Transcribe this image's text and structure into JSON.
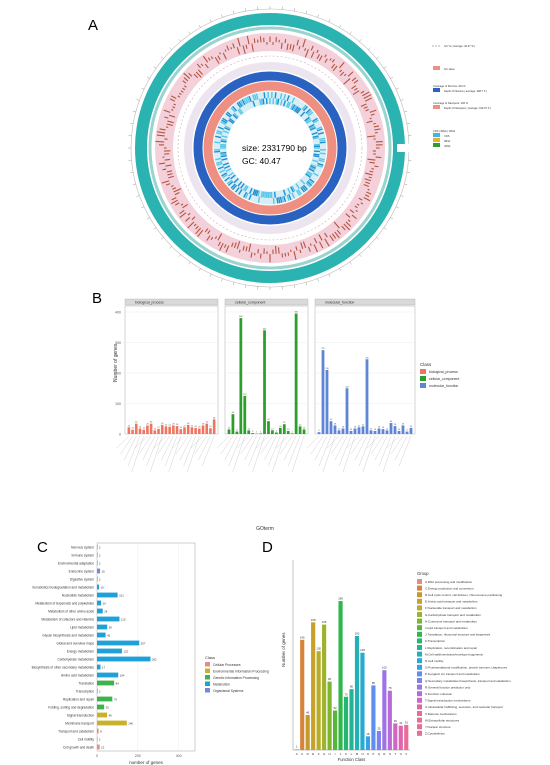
{
  "panel_labels": {
    "a": "A",
    "b": "B",
    "c": "C",
    "d": "D"
  },
  "colors": {
    "teal": "#2bb3b1",
    "pink": "#f0a3b8",
    "blue": "#2a62c2",
    "salmon": "#ee8f82",
    "cyan": "#3fb6e3",
    "bp_red": "#f07560",
    "cc_green": "#2aa02a",
    "mf_blue": "#5e86d4",
    "kegg_cp": "#e58b8b",
    "kegg_eip": "#c9b22a",
    "kegg_gip": "#3cb44b",
    "kegg_met": "#1ea0d8",
    "kegg_os": "#7a87d6",
    "strip": "#d9d9d9"
  },
  "chart_data": [
    {
      "type": "circos",
      "center_text": {
        "size": "size: 2331790 bp",
        "gc": "GC: 40.47"
      },
      "legend": [
        {
          "label": "GC % ( Average: 40.47 % )",
          "color": "#aaaaaa"
        },
        {
          "label": "GC skew",
          "color": "#ee8f82"
        },
        {
          "label": "Coverage of Illumina: 100 %",
          "color": ""
        },
        {
          "label": "Depth of Illumina ( average: 498.7 X )",
          "color": "#2a62c2"
        },
        {
          "label": "Coverage of Nanopore: 100 %",
          "color": ""
        },
        {
          "label": "Depth of Nanopore ( average: 432.57 X )",
          "color": "#ee8f82"
        },
        {
          "label": "CDS | tRNA | rRNA",
          "color": ""
        },
        {
          "label": "CDS",
          "color": "#3fb6e3"
        },
        {
          "label": "tRNA",
          "color": "#e6b422"
        },
        {
          "label": "rRNA",
          "color": "#2aa02a"
        }
      ]
    },
    {
      "type": "bar",
      "ylabel": "Number of genes",
      "xlabel": "GOterm",
      "ylim": [
        0,
        400
      ],
      "yticks": [
        0,
        100,
        200,
        300,
        400
      ],
      "legend": {
        "title": "Class",
        "position": "right",
        "entries": [
          "biological_process",
          "cellular_component",
          "molecular_function"
        ]
      },
      "facets": [
        {
          "name": "biological_process",
          "color": "#f07560",
          "values": [
            22,
            14,
            34,
            18,
            14,
            28,
            34,
            12,
            17,
            30,
            25,
            24,
            28,
            26,
            16,
            22,
            30,
            22,
            20,
            18,
            28,
            34,
            19,
            48
          ]
        },
        {
          "name": "cellular_component",
          "color": "#2aa02a",
          "values": [
            15,
            65,
            8,
            380,
            125,
            12,
            3,
            1,
            2,
            340,
            42,
            12,
            5,
            20,
            32,
            10,
            2,
            395,
            25,
            15
          ]
        },
        {
          "name": "molecular_function",
          "color": "#5e86d4",
          "values": [
            6,
            275,
            210,
            42,
            28,
            12,
            18,
            150,
            10,
            18,
            22,
            25,
            245,
            12,
            10,
            18,
            16,
            12,
            36,
            26,
            10,
            28,
            8,
            20
          ]
        }
      ]
    },
    {
      "type": "bar",
      "orientation": "horizontal",
      "xlabel": "number of genes",
      "xlim": [
        0,
        480
      ],
      "xticks": [
        0,
        200,
        400
      ],
      "legend": {
        "title": "Class",
        "position": "right",
        "entries": [
          "Cellular Processes",
          "Environmental Information Processing",
          "Genetic Information Processing",
          "Metabolism",
          "Organismal Systems"
        ]
      },
      "categories": [
        "Nervous system",
        "Immune system",
        "Environmental adaptation",
        "Endocrine system",
        "Digestive system",
        "Xenobiotics biodegradation and metabolism",
        "Nucleotide metabolism",
        "Metabolism of terpenoids and polyketides",
        "Metabolism of other amino acids",
        "Metabolism of cofactors and vitamins",
        "Lipid metabolism",
        "Glycan biosynthesis and metabolism",
        "Global and overview maps",
        "Energy metabolism",
        "Carbohydrate metabolism",
        "Biosynthesis of other secondary metabolites",
        "Amino acid metabolism",
        "Translation",
        "Transcription",
        "Replication and repair",
        "Folding, sorting and degradation",
        "Signal transduction",
        "Membrane transport",
        "Transport and catabolism",
        "Cell motility",
        "Cell growth and death"
      ],
      "values": [
        2,
        2,
        2,
        15,
        2,
        10,
        101,
        20,
        28,
        110,
        50,
        42,
        207,
        122,
        262,
        17,
        104,
        84,
        2,
        75,
        35,
        49,
        146,
        8,
        2,
        13
      ],
      "classes": [
        "Organismal Systems",
        "Organismal Systems",
        "Organismal Systems",
        "Organismal Systems",
        "Organismal Systems",
        "Metabolism",
        "Metabolism",
        "Metabolism",
        "Metabolism",
        "Metabolism",
        "Metabolism",
        "Metabolism",
        "Metabolism",
        "Metabolism",
        "Metabolism",
        "Metabolism",
        "Metabolism",
        "Genetic Information Processing",
        "Genetic Information Processing",
        "Genetic Information Processing",
        "Genetic Information Processing",
        "Environmental Information Processing",
        "Environmental Information Processing",
        "Cellular Processes",
        "Cellular Processes",
        "Cellular Processes"
      ]
    },
    {
      "type": "bar",
      "xlabel": "Function Class",
      "ylabel": "Number of genes",
      "ylim": [
        0,
        250
      ],
      "legend": {
        "title": "Group",
        "position": "right"
      },
      "categories": [
        "A",
        "C",
        "D",
        "E",
        "F",
        "G",
        "H",
        "I",
        "J",
        "K",
        "L",
        "M",
        "N",
        "O",
        "P",
        "Q",
        "R",
        "S",
        "T",
        "U",
        "V"
      ],
      "values": [
        1,
        145,
        46,
        168,
        130,
        165,
        90,
        52,
        196,
        70,
        80,
        150,
        128,
        18,
        85,
        25,
        105,
        78,
        35,
        32,
        33
      ],
      "colors": [
        "#e58b8b",
        "#d6843a",
        "#c49a2c",
        "#c8a12a",
        "#b6ad28",
        "#9eb22a",
        "#7cb62e",
        "#56b73a",
        "#2eb84c",
        "#25b771",
        "#22b495",
        "#22b1b5",
        "#26acd2",
        "#3aa0e6",
        "#5c8ff0",
        "#7f80ef",
        "#9c74e6",
        "#b86bd8",
        "#cf66c4",
        "#de66ad",
        "#e86c95"
      ],
      "groups": [
        "A:RNA processing and modification",
        "C:Energy production and conversion",
        "D:Cell cycle control, cell division, chromosome partitioning",
        "E:Amino acid transport and metabolism",
        "F:Nucleotide transport and metabolism",
        "G:Carbohydrate transport and metabolism",
        "H:Coenzyme transport and metabolism",
        "I:Lipid transport and metabolism",
        "J:Translation, ribosomal structure and biogenesis",
        "K:Transcription",
        "L:Replication, recombination and repair",
        "M:Cell wall/membrane/envelope biogenesis",
        "N:Cell motility",
        "O:Posttranslational modification, protein turnover, chaperones",
        "P:Inorganic ion transport and metabolism",
        "Q:Secondary metabolites biosynthesis, transport and catabolism",
        "R:General function prediction only",
        "S:Function unknown",
        "T:Signal transduction mechanisms",
        "U:Intracellular trafficking, secretion, and vesicular transport",
        "V:Defense mechanisms",
        "W:Extracellular structures",
        "Y:Nuclear structure",
        "Z:Cytoskeleton"
      ]
    }
  ]
}
